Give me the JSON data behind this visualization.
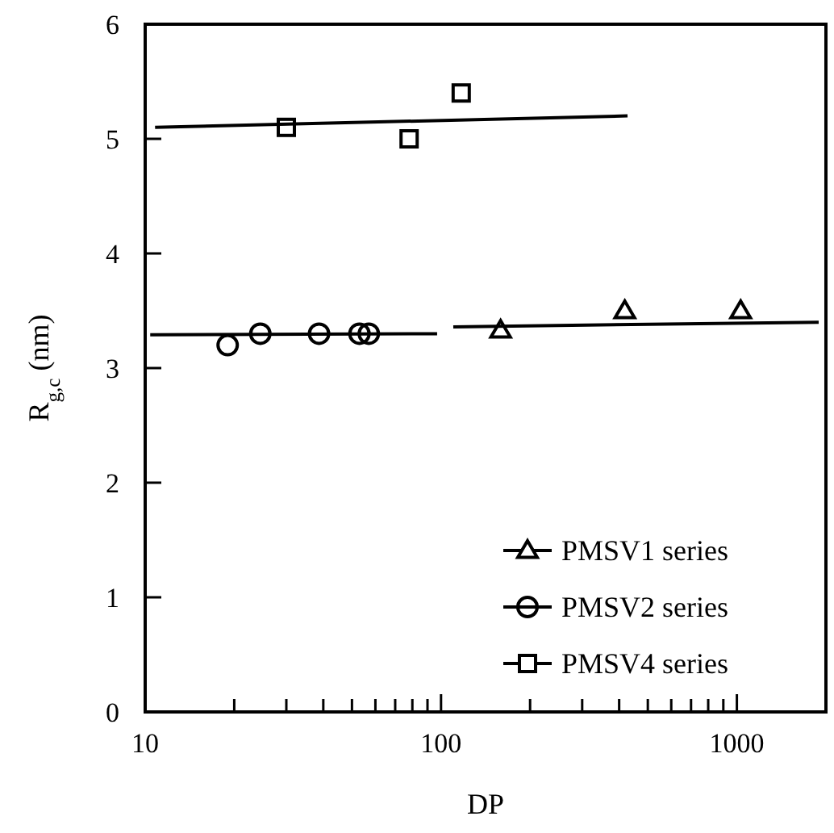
{
  "chart_data": {
    "type": "scatter",
    "xlabel": "DP",
    "ylabel": "R$_{g,c}$  (nm)",
    "log": "x",
    "grid": false,
    "legend": "bottom right",
    "xlim": [
      10,
      2000
    ],
    "ylim": [
      0,
      6
    ],
    "xticks": [
      10,
      {
        "value": 20,
        "label": null
      },
      {
        "value": 30,
        "label": null
      },
      {
        "value": 40,
        "label": null
      },
      {
        "value": 50,
        "label": null
      },
      {
        "value": 60,
        "label": null
      },
      {
        "value": 70,
        "label": null
      },
      {
        "value": 80,
        "label": null
      },
      {
        "value": 90,
        "label": null
      },
      100,
      {
        "value": 200,
        "label": null
      },
      {
        "value": 300,
        "label": null
      },
      {
        "value": 400,
        "label": null
      },
      {
        "value": 500,
        "label": null
      },
      {
        "value": 600,
        "label": null
      },
      {
        "value": 700,
        "label": null
      },
      {
        "value": 800,
        "label": null
      },
      {
        "value": 900,
        "label": null
      },
      1000
    ],
    "yticks": [
      0,
      1,
      2,
      3,
      4,
      5,
      6
    ],
    "series": [
      {
        "name": "PMSV1 series",
        "color": "#000000",
        "marker": "triangle",
        "x": [
          159,
          418,
          1030
        ],
        "values": [
          3.33,
          3.5,
          3.5
        ]
      },
      {
        "name": "PMSV2 series",
        "color": "#000000",
        "marker": "circle",
        "x": [
          19,
          24.5,
          38.7,
          53,
          57
        ],
        "values": [
          3.2,
          3.3,
          3.3,
          3.3,
          3.3
        ]
      },
      {
        "name": "PMSV4 series",
        "color": "#000000",
        "marker": "square",
        "x": [
          30,
          78,
          117
        ],
        "values": [
          5.1,
          5.0,
          5.4
        ]
      },
      {
        "type": "line",
        "color": "#000000",
        "marker": "none",
        "x": [
          110,
          1890
        ],
        "values": [
          3.36,
          3.4
        ]
      },
      {
        "type": "line",
        "color": "#000000",
        "marker": "none",
        "x": [
          10.4,
          97
        ],
        "values": [
          3.29,
          3.3
        ]
      },
      {
        "type": "line",
        "color": "#000000",
        "marker": "none",
        "x": [
          10.8,
          427
        ],
        "values": [
          5.1,
          5.2
        ]
      }
    ]
  }
}
